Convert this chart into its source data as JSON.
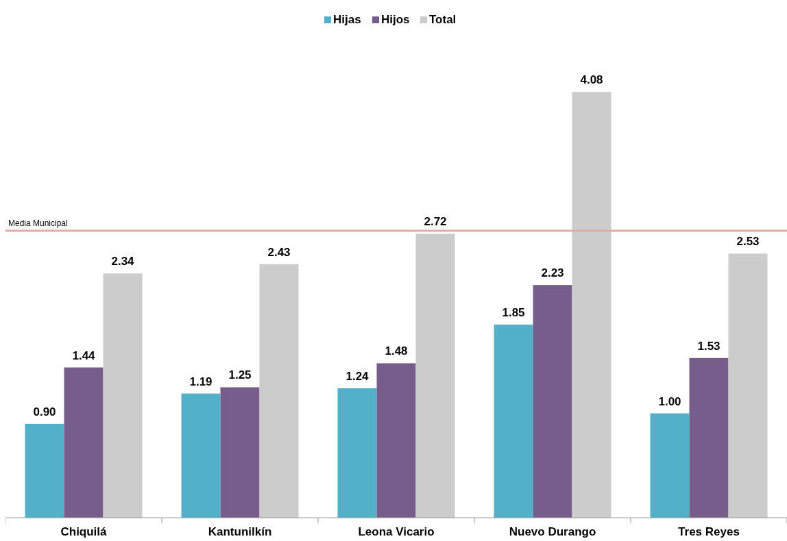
{
  "chart_data": {
    "type": "bar",
    "categories": [
      "Chiquilá",
      "Kantunilkín",
      "Leona Vicario",
      "Nuevo Durango",
      "Tres Reyes"
    ],
    "series": [
      {
        "name": "Hijas",
        "color": "#52b0c9",
        "values": [
          0.9,
          1.19,
          1.24,
          1.85,
          1.0
        ],
        "value_labels": [
          "0.90",
          "1.19",
          "1.24",
          "1.85",
          "1.00"
        ]
      },
      {
        "name": "Hijos",
        "color": "#765d8c",
        "values": [
          1.44,
          1.25,
          1.48,
          2.23,
          1.53
        ],
        "value_labels": [
          "1.44",
          "1.25",
          "1.48",
          "2.23",
          "1.53"
        ]
      },
      {
        "name": "Total",
        "color": "#cccccc",
        "values": [
          2.34,
          2.43,
          2.72,
          4.08,
          2.53
        ],
        "value_labels": [
          "2.34",
          "2.43",
          "2.72",
          "4.08",
          "2.53"
        ]
      }
    ],
    "tick_labels": "x",
    "legend": "top",
    "ref_lines": [
      {
        "axis": "y",
        "value": 2.75,
        "label": "Media Municipal",
        "color": "#e8a9a4"
      }
    ]
  }
}
